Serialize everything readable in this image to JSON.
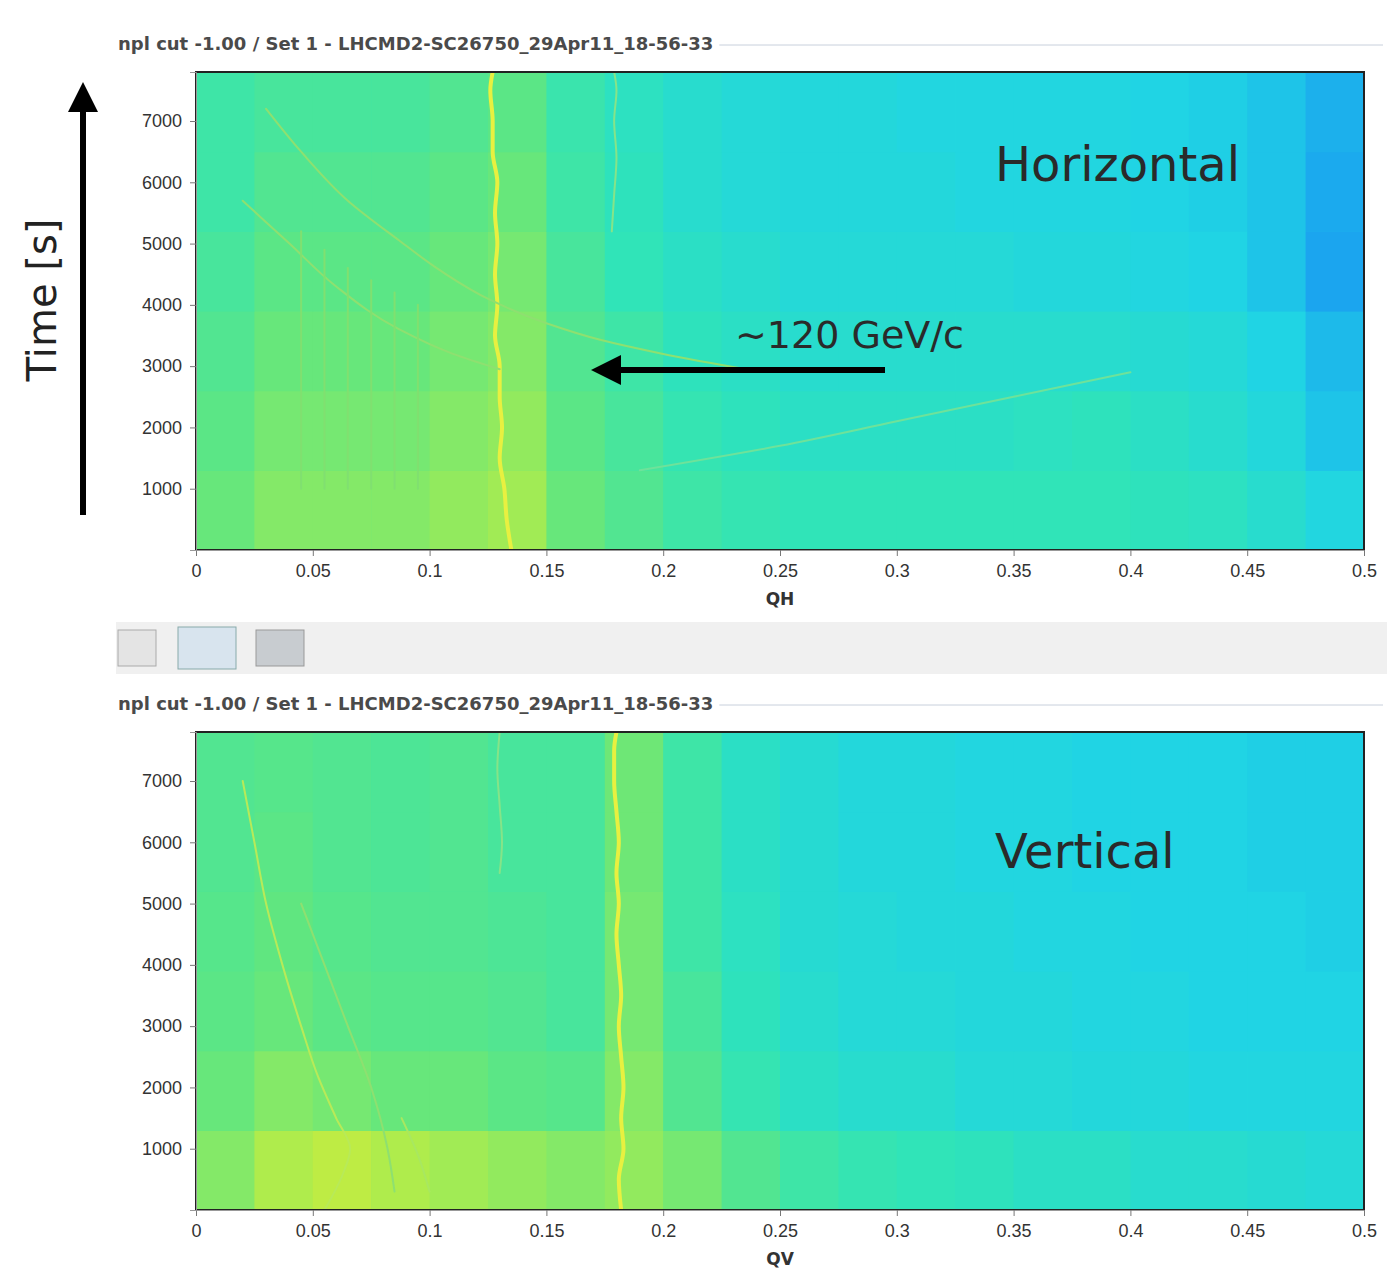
{
  "chart_data": [
    {
      "type": "heatmap",
      "title": "npl cut -1.00 / Set 1 - LHCMD2-SC26750_29Apr11_18-56-33",
      "xlabel": "QH",
      "ylabel": "Time [s]",
      "annotations": [
        "Horizontal",
        "∼120 GeV/c"
      ],
      "xlim": [
        0,
        0.5
      ],
      "xticks": [
        0,
        0.05,
        0.1,
        0.15,
        0.2,
        0.25,
        0.3,
        0.35,
        0.4,
        0.45,
        0.5
      ],
      "ylim": [
        0,
        7800
      ],
      "yticks": [
        1000,
        2000,
        3000,
        4000,
        5000,
        6000,
        7000
      ],
      "zlim": [
        0,
        1
      ],
      "x_bins": [
        0,
        0.025,
        0.05,
        0.075,
        0.1,
        0.125,
        0.15,
        0.175,
        0.2,
        0.225,
        0.25,
        0.275,
        0.3,
        0.325,
        0.35,
        0.375,
        0.4,
        0.425,
        0.45,
        0.475,
        0.5
      ],
      "y_bins": [
        0,
        1300,
        2600,
        3900,
        5200,
        6500,
        7800
      ],
      "cells": [
        [
          0.66,
          0.7,
          0.7,
          0.7,
          0.72,
          0.74,
          0.66,
          0.62,
          0.58,
          0.56,
          0.55,
          0.55,
          0.55,
          0.55,
          0.55,
          0.55,
          0.54,
          0.53,
          0.5,
          0.46
        ],
        [
          0.64,
          0.68,
          0.68,
          0.68,
          0.7,
          0.72,
          0.64,
          0.6,
          0.56,
          0.54,
          0.52,
          0.52,
          0.52,
          0.52,
          0.53,
          0.54,
          0.52,
          0.5,
          0.47,
          0.42
        ],
        [
          0.62,
          0.66,
          0.66,
          0.66,
          0.68,
          0.7,
          0.62,
          0.58,
          0.54,
          0.52,
          0.5,
          0.5,
          0.5,
          0.5,
          0.5,
          0.5,
          0.49,
          0.48,
          0.45,
          0.4
        ],
        [
          0.6,
          0.64,
          0.64,
          0.64,
          0.66,
          0.68,
          0.6,
          0.55,
          0.52,
          0.5,
          0.48,
          0.48,
          0.48,
          0.48,
          0.47,
          0.47,
          0.46,
          0.45,
          0.42,
          0.36
        ],
        [
          0.58,
          0.62,
          0.62,
          0.62,
          0.64,
          0.66,
          0.58,
          0.54,
          0.5,
          0.48,
          0.47,
          0.47,
          0.47,
          0.46,
          0.46,
          0.46,
          0.45,
          0.44,
          0.42,
          0.37
        ],
        [
          0.58,
          0.6,
          0.6,
          0.6,
          0.62,
          0.64,
          0.57,
          0.53,
          0.5,
          0.48,
          0.47,
          0.47,
          0.46,
          0.46,
          0.46,
          0.46,
          0.45,
          0.44,
          0.42,
          0.38
        ]
      ],
      "series": [
        {
          "type": "line",
          "color": "#e8f040",
          "line_style": "solid",
          "x": [
            0.135,
            0.133,
            0.132,
            0.13,
            0.131,
            0.13,
            0.13,
            0.128,
            0.129,
            0.128,
            0.129,
            0.128,
            0.129,
            0.127,
            0.127,
            0.126,
            0.127
          ],
          "values": [
            0,
            500,
            1000,
            1500,
            2000,
            2500,
            3000,
            3500,
            4000,
            4500,
            5000,
            5500,
            6000,
            6500,
            7000,
            7500,
            7800
          ]
        },
        {
          "type": "line",
          "color": "#86e488",
          "line_style": "solid",
          "x": [
            0.178,
            0.179,
            0.18,
            0.179,
            0.18,
            0.179
          ],
          "values": [
            5200,
            5800,
            6400,
            7000,
            7500,
            7800
          ]
        },
        {
          "type": "line",
          "color": "#8ee070",
          "line_style": "solid",
          "x": [
            0.03,
            0.045,
            0.065,
            0.087,
            0.105,
            0.126,
            0.15,
            0.173,
            0.2,
            0.237
          ],
          "values": [
            7200,
            6500,
            5700,
            5050,
            4550,
            4080,
            3700,
            3430,
            3200,
            2940
          ]
        },
        {
          "type": "line",
          "color": "#8ee070",
          "line_style": "solid",
          "x": [
            0.02,
            0.04,
            0.06,
            0.087,
            0.11,
            0.13
          ],
          "values": [
            5700,
            5000,
            4300,
            3600,
            3200,
            2950
          ]
        },
        {
          "type": "line",
          "color": "#6ee29a",
          "line_style": "solid",
          "x": [
            0.19,
            0.25,
            0.3,
            0.35,
            0.4
          ],
          "values": [
            1300,
            1700,
            2100,
            2500,
            2900
          ]
        },
        {
          "type": "line",
          "color": "#80e070",
          "line_style": "solid",
          "x": [
            0.045,
            0.045
          ],
          "values": [
            1000,
            5200
          ]
        },
        {
          "type": "line",
          "color": "#80e070",
          "line_style": "solid",
          "x": [
            0.055,
            0.055
          ],
          "values": [
            1000,
            4900
          ]
        },
        {
          "type": "line",
          "color": "#80e070",
          "line_style": "solid",
          "x": [
            0.065,
            0.065
          ],
          "values": [
            1000,
            4600
          ]
        },
        {
          "type": "line",
          "color": "#80e070",
          "line_style": "solid",
          "x": [
            0.075,
            0.075
          ],
          "values": [
            1000,
            4400
          ]
        },
        {
          "type": "line",
          "color": "#80e070",
          "line_style": "solid",
          "x": [
            0.085,
            0.085
          ],
          "values": [
            1000,
            4200
          ]
        },
        {
          "type": "line",
          "color": "#80e070",
          "line_style": "solid",
          "x": [
            0.095,
            0.095
          ],
          "values": [
            1000,
            4000
          ]
        }
      ]
    },
    {
      "type": "heatmap",
      "title": "npl cut -1.00 / Set 1 - LHCMD2-SC26750_29Apr11_18-56-33",
      "xlabel": "QV",
      "annotations": [
        "Vertical"
      ],
      "xlim": [
        0,
        0.5
      ],
      "xticks": [
        0,
        0.05,
        0.1,
        0.15,
        0.2,
        0.25,
        0.3,
        0.35,
        0.4,
        0.45,
        0.5
      ],
      "ylim": [
        0,
        7800
      ],
      "yticks": [
        1000,
        2000,
        3000,
        4000,
        5000,
        6000,
        7000
      ],
      "zlim": [
        0,
        1
      ],
      "x_bins": [
        0,
        0.025,
        0.05,
        0.075,
        0.1,
        0.125,
        0.15,
        0.175,
        0.2,
        0.225,
        0.25,
        0.275,
        0.3,
        0.325,
        0.35,
        0.375,
        0.4,
        0.425,
        0.45,
        0.475,
        0.5
      ],
      "y_bins": [
        0,
        1300,
        2600,
        3900,
        5200,
        6500,
        7800
      ],
      "cells": [
        [
          0.7,
          0.76,
          0.78,
          0.76,
          0.74,
          0.72,
          0.7,
          0.72,
          0.68,
          0.62,
          0.58,
          0.56,
          0.55,
          0.54,
          0.52,
          0.52,
          0.5,
          0.5,
          0.49,
          0.48
        ],
        [
          0.66,
          0.7,
          0.68,
          0.66,
          0.66,
          0.64,
          0.63,
          0.7,
          0.62,
          0.56,
          0.52,
          0.5,
          0.5,
          0.48,
          0.48,
          0.47,
          0.47,
          0.46,
          0.46,
          0.46
        ],
        [
          0.64,
          0.66,
          0.64,
          0.63,
          0.63,
          0.62,
          0.6,
          0.68,
          0.6,
          0.54,
          0.5,
          0.48,
          0.48,
          0.47,
          0.47,
          0.46,
          0.46,
          0.45,
          0.45,
          0.45
        ],
        [
          0.63,
          0.65,
          0.63,
          0.62,
          0.62,
          0.61,
          0.6,
          0.68,
          0.58,
          0.53,
          0.49,
          0.48,
          0.47,
          0.47,
          0.46,
          0.46,
          0.45,
          0.45,
          0.45,
          0.44
        ],
        [
          0.62,
          0.64,
          0.62,
          0.61,
          0.62,
          0.6,
          0.6,
          0.67,
          0.58,
          0.52,
          0.49,
          0.47,
          0.47,
          0.46,
          0.46,
          0.45,
          0.45,
          0.45,
          0.44,
          0.44
        ],
        [
          0.62,
          0.63,
          0.62,
          0.61,
          0.62,
          0.6,
          0.6,
          0.67,
          0.58,
          0.52,
          0.49,
          0.47,
          0.47,
          0.46,
          0.46,
          0.45,
          0.45,
          0.45,
          0.44,
          0.44
        ]
      ],
      "series": [
        {
          "type": "line",
          "color": "#e8f040",
          "line_style": "solid",
          "x": [
            0.182,
            0.181,
            0.183,
            0.182,
            0.183,
            0.182,
            0.181,
            0.182,
            0.181,
            0.18,
            0.181,
            0.18,
            0.181,
            0.18,
            0.179,
            0.179,
            0.18
          ],
          "values": [
            0,
            500,
            1000,
            1500,
            2000,
            2500,
            3000,
            3500,
            4000,
            4500,
            5000,
            5500,
            6000,
            6500,
            7000,
            7500,
            7800
          ]
        },
        {
          "type": "line",
          "color": "#86e488",
          "line_style": "solid",
          "x": [
            0.13,
            0.131,
            0.13,
            0.129,
            0.13
          ],
          "values": [
            5500,
            6000,
            6600,
            7200,
            7800
          ]
        },
        {
          "type": "line",
          "color": "#b8ea58",
          "line_style": "solid",
          "x": [
            0.055,
            0.063,
            0.066,
            0.06,
            0.052,
            0.045,
            0.037,
            0.03,
            0.025,
            0.02
          ],
          "values": [
            0,
            600,
            1000,
            1500,
            2200,
            3000,
            4000,
            5000,
            6000,
            7000
          ]
        },
        {
          "type": "line",
          "color": "#8ee070",
          "line_style": "solid",
          "x": [
            0.085,
            0.082,
            0.075,
            0.065,
            0.055,
            0.045
          ],
          "values": [
            300,
            1000,
            2000,
            3000,
            4000,
            5000
          ]
        },
        {
          "type": "line",
          "color": "#a8e860",
          "line_style": "solid",
          "x": [
            0.1,
            0.095,
            0.088
          ],
          "values": [
            300,
            900,
            1500
          ]
        }
      ]
    }
  ]
}
